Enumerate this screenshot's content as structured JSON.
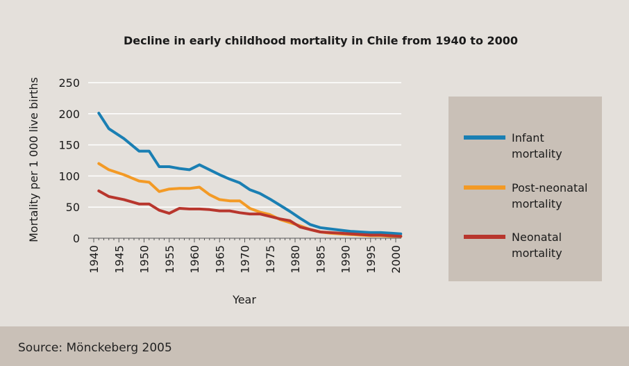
{
  "colors": {
    "background": "#e4e0db",
    "footer_band": "#c9c0b7",
    "legend_box": "#c9c0b7",
    "grid": "#ffffff",
    "infant": "#1a7fb3",
    "post_neonatal": "#f39a25",
    "neonatal": "#b8362d"
  },
  "source": "Source: Mönckeberg 2005",
  "chart_data": {
    "type": "line",
    "title": "Decline in early childhood mortality in Chile from 1940 to 2000",
    "xlabel": "Year",
    "ylabel": "Mortality per 1 000 live births",
    "xlim": [
      1940,
      2000
    ],
    "ylim": [
      0,
      250
    ],
    "xticks": [
      "1940",
      "1945",
      "1950",
      "1955",
      "1960",
      "1965",
      "1970",
      "1975",
      "1980",
      "1985",
      "1990",
      "1995",
      "2000"
    ],
    "yticks": [
      "0",
      "50",
      "100",
      "150",
      "200",
      "250"
    ],
    "grid": true,
    "legend_placement": "right",
    "series": [
      {
        "name": "Infant mortality",
        "legend_lines": [
          "Infant",
          "mortality"
        ],
        "color": "#1a7fb3",
        "x": [
          1941,
          1943,
          1946,
          1949,
          1951,
          1953,
          1955,
          1957,
          1959,
          1961,
          1963,
          1965,
          1967,
          1969,
          1971,
          1973,
          1975,
          1977,
          1979,
          1981,
          1983,
          1985,
          1987,
          1989,
          1991,
          1993,
          1995,
          1997,
          1999,
          2001
        ],
        "y": [
          201,
          176,
          160,
          140,
          140,
          115,
          115,
          112,
          110,
          118,
          110,
          102,
          95,
          89,
          78,
          72,
          63,
          53,
          43,
          32,
          22,
          17,
          15,
          13,
          11,
          10,
          9,
          9,
          8,
          7
        ]
      },
      {
        "name": "Post-neonatal mortality",
        "legend_lines": [
          "Post-neonatal",
          "mortality"
        ],
        "color": "#f39a25",
        "x": [
          1941,
          1943,
          1946,
          1949,
          1951,
          1953,
          1955,
          1957,
          1959,
          1961,
          1963,
          1965,
          1967,
          1969,
          1971,
          1973,
          1975,
          1977,
          1979,
          1981,
          1983,
          1985,
          1987,
          1989,
          1991,
          1993,
          1995,
          1997,
          1999,
          2001
        ],
        "y": [
          120,
          110,
          102,
          92,
          90,
          75,
          79,
          80,
          80,
          82,
          70,
          62,
          60,
          60,
          48,
          42,
          38,
          30,
          25,
          20,
          14,
          10,
          8,
          7,
          6,
          5,
          4,
          4,
          3,
          3
        ]
      },
      {
        "name": "Neonatal mortality",
        "legend_lines": [
          "Neonatal",
          "mortality"
        ],
        "color": "#b8362d",
        "x": [
          1941,
          1943,
          1946,
          1949,
          1951,
          1953,
          1955,
          1957,
          1959,
          1961,
          1963,
          1965,
          1967,
          1969,
          1971,
          1973,
          1975,
          1977,
          1979,
          1981,
          1983,
          1985,
          1987,
          1989,
          1991,
          1993,
          1995,
          1997,
          1999,
          2001
        ],
        "y": [
          76,
          67,
          62,
          55,
          55,
          45,
          40,
          48,
          47,
          47,
          46,
          44,
          44,
          41,
          39,
          39,
          35,
          31,
          28,
          18,
          14,
          10,
          9,
          8,
          7,
          6,
          5,
          5,
          4,
          3
        ]
      }
    ]
  }
}
